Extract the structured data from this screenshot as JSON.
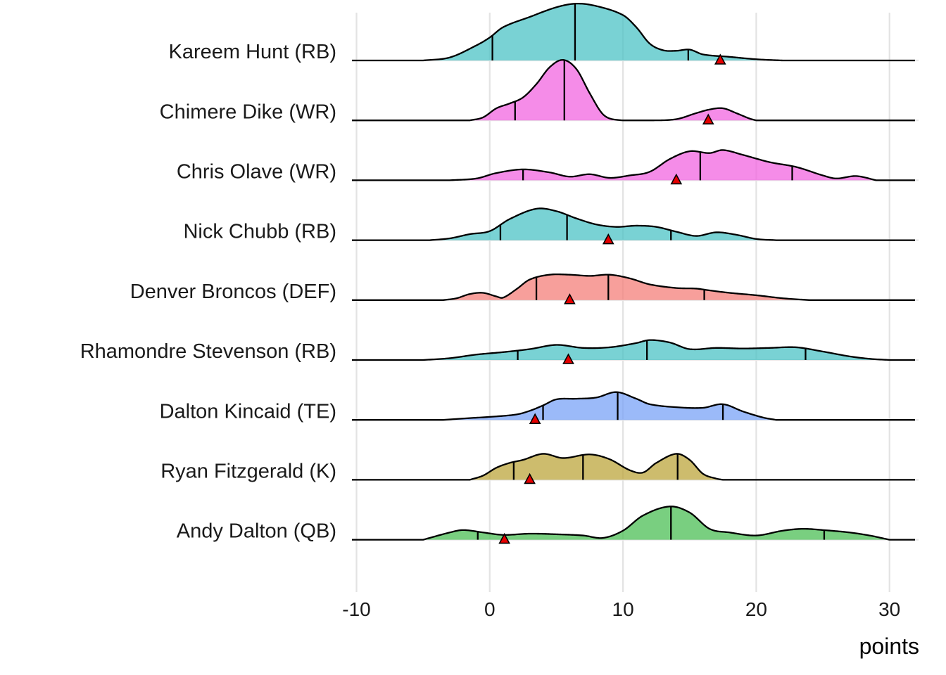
{
  "chart_data": {
    "type": "ridgeline",
    "xlabel": "points",
    "xlim": [
      -10,
      32
    ],
    "xticks": [
      -10,
      0,
      10,
      20,
      30
    ],
    "grid": true,
    "legend": "none",
    "colors": {
      "RB": "#4cc3c6",
      "WR": "#f266e0",
      "DEF": "#f47f7a",
      "TE": "#7aa3f7",
      "K": "#bca63c",
      "QB": "#4cbf55"
    },
    "rows": [
      {
        "label": "Kareem Hunt (RB)",
        "position": "RB",
        "range": [
          -5,
          22
        ],
        "density": [
          [
            -5,
            0.0
          ],
          [
            -3,
            0.05
          ],
          [
            -1,
            0.25
          ],
          [
            0,
            0.38
          ],
          [
            1,
            0.55
          ],
          [
            3,
            0.72
          ],
          [
            5,
            0.88
          ],
          [
            6.5,
            0.94
          ],
          [
            8,
            0.9
          ],
          [
            10,
            0.75
          ],
          [
            11,
            0.55
          ],
          [
            12,
            0.28
          ],
          [
            13,
            0.17
          ],
          [
            14,
            0.16
          ],
          [
            15,
            0.18
          ],
          [
            16,
            0.1
          ],
          [
            18,
            0.06
          ],
          [
            20,
            0.02
          ],
          [
            22,
            0.0
          ]
        ],
        "quantiles": [
          0.2,
          6.4,
          14.9
        ],
        "projection": 17.3
      },
      {
        "label": "Chimere Dike (WR)",
        "position": "WR",
        "range": [
          -1.5,
          20
        ],
        "density": [
          [
            -1.5,
            0.0
          ],
          [
            -0.5,
            0.05
          ],
          [
            0.5,
            0.2
          ],
          [
            1.5,
            0.28
          ],
          [
            2.5,
            0.38
          ],
          [
            3.5,
            0.6
          ],
          [
            4.5,
            0.88
          ],
          [
            5.5,
            1.0
          ],
          [
            6.5,
            0.85
          ],
          [
            7.5,
            0.45
          ],
          [
            8.5,
            0.1
          ],
          [
            9.5,
            0.01
          ],
          [
            12,
            0.0
          ],
          [
            14,
            0.02
          ],
          [
            15.5,
            0.12
          ],
          [
            16.5,
            0.18
          ],
          [
            17.5,
            0.2
          ],
          [
            18.5,
            0.12
          ],
          [
            19.5,
            0.03
          ],
          [
            20,
            0.0
          ]
        ],
        "quantiles": [
          1.9,
          5.6
        ],
        "projection": 16.4
      },
      {
        "label": "Chris Olave (WR)",
        "position": "WR",
        "range": [
          -3,
          29
        ],
        "density": [
          [
            -3,
            0.0
          ],
          [
            -1,
            0.03
          ],
          [
            0.5,
            0.12
          ],
          [
            2.5,
            0.18
          ],
          [
            4.5,
            0.13
          ],
          [
            6,
            0.06
          ],
          [
            7.5,
            0.1
          ],
          [
            9,
            0.04
          ],
          [
            10.5,
            0.08
          ],
          [
            12,
            0.14
          ],
          [
            13.5,
            0.35
          ],
          [
            15,
            0.48
          ],
          [
            16.5,
            0.45
          ],
          [
            17.5,
            0.5
          ],
          [
            19,
            0.42
          ],
          [
            21,
            0.3
          ],
          [
            23,
            0.22
          ],
          [
            25,
            0.08
          ],
          [
            26,
            0.03
          ],
          [
            27.5,
            0.07
          ],
          [
            29,
            0.0
          ]
        ],
        "quantiles": [
          2.5,
          15.8,
          22.7
        ],
        "projection": 14.0
      },
      {
        "label": "Nick Chubb (RB)",
        "position": "RB",
        "range": [
          -4.5,
          21.5
        ],
        "density": [
          [
            -4.5,
            0.0
          ],
          [
            -3,
            0.03
          ],
          [
            -1.5,
            0.1
          ],
          [
            0,
            0.15
          ],
          [
            1.5,
            0.35
          ],
          [
            3.5,
            0.52
          ],
          [
            5,
            0.48
          ],
          [
            6.5,
            0.36
          ],
          [
            8,
            0.26
          ],
          [
            9.5,
            0.22
          ],
          [
            11,
            0.24
          ],
          [
            12.5,
            0.22
          ],
          [
            14,
            0.14
          ],
          [
            15.5,
            0.07
          ],
          [
            17,
            0.13
          ],
          [
            18.5,
            0.09
          ],
          [
            20,
            0.02
          ],
          [
            21.5,
            0.0
          ]
        ],
        "quantiles": [
          0.8,
          5.8,
          13.6
        ],
        "projection": 8.9
      },
      {
        "label": "Denver Broncos (DEF)",
        "position": "DEF",
        "range": [
          -3.5,
          24
        ],
        "density": [
          [
            -3.5,
            0.0
          ],
          [
            -2.5,
            0.03
          ],
          [
            -1.5,
            0.1
          ],
          [
            -0.5,
            0.12
          ],
          [
            0.5,
            0.06
          ],
          [
            1,
            0.04
          ],
          [
            2,
            0.18
          ],
          [
            3,
            0.34
          ],
          [
            4.5,
            0.42
          ],
          [
            6,
            0.42
          ],
          [
            7.5,
            0.4
          ],
          [
            9,
            0.42
          ],
          [
            10.5,
            0.36
          ],
          [
            12,
            0.26
          ],
          [
            14,
            0.2
          ],
          [
            15.5,
            0.19
          ],
          [
            16.5,
            0.16
          ],
          [
            18,
            0.12
          ],
          [
            20,
            0.08
          ],
          [
            22,
            0.03
          ],
          [
            24,
            0.0
          ]
        ],
        "quantiles": [
          3.5,
          8.9,
          16.1
        ],
        "projection": 6.0
      },
      {
        "label": "Rhamondre Stevenson (RB)",
        "position": "RB",
        "range": [
          -5,
          30
        ],
        "density": [
          [
            -5,
            0.0
          ],
          [
            -3,
            0.03
          ],
          [
            -1,
            0.09
          ],
          [
            1,
            0.13
          ],
          [
            3,
            0.18
          ],
          [
            5,
            0.25
          ],
          [
            7,
            0.2
          ],
          [
            9,
            0.21
          ],
          [
            11,
            0.28
          ],
          [
            12,
            0.33
          ],
          [
            13.5,
            0.29
          ],
          [
            15,
            0.18
          ],
          [
            17,
            0.2
          ],
          [
            19,
            0.19
          ],
          [
            21,
            0.2
          ],
          [
            23,
            0.21
          ],
          [
            25,
            0.14
          ],
          [
            27,
            0.06
          ],
          [
            28.5,
            0.02
          ],
          [
            30,
            0.0
          ]
        ],
        "quantiles": [
          2.1,
          11.8,
          23.7
        ],
        "projection": 5.9
      },
      {
        "label": "Dalton Kincaid (TE)",
        "position": "TE",
        "range": [
          -3.5,
          21.5
        ],
        "density": [
          [
            -3.5,
            0.0
          ],
          [
            -1.5,
            0.03
          ],
          [
            0,
            0.05
          ],
          [
            2,
            0.09
          ],
          [
            3,
            0.15
          ],
          [
            4,
            0.24
          ],
          [
            5,
            0.34
          ],
          [
            6.5,
            0.35
          ],
          [
            8,
            0.37
          ],
          [
            9.5,
            0.46
          ],
          [
            11,
            0.35
          ],
          [
            12,
            0.26
          ],
          [
            14,
            0.21
          ],
          [
            16,
            0.2
          ],
          [
            17.5,
            0.26
          ],
          [
            19,
            0.14
          ],
          [
            20.5,
            0.04
          ],
          [
            21.5,
            0.0
          ]
        ],
        "quantiles": [
          4.0,
          9.6,
          17.5
        ],
        "projection": 3.4
      },
      {
        "label": "Ryan Fitzgerald (K)",
        "position": "K",
        "range": [
          -1.5,
          17.5
        ],
        "density": [
          [
            -1.5,
            0.0
          ],
          [
            -0.5,
            0.07
          ],
          [
            0.5,
            0.2
          ],
          [
            1.5,
            0.28
          ],
          [
            2.5,
            0.33
          ],
          [
            4,
            0.43
          ],
          [
            5.5,
            0.36
          ],
          [
            7.5,
            0.42
          ],
          [
            9,
            0.34
          ],
          [
            10.5,
            0.16
          ],
          [
            11.5,
            0.12
          ],
          [
            12.5,
            0.28
          ],
          [
            14,
            0.43
          ],
          [
            15,
            0.33
          ],
          [
            16,
            0.1
          ],
          [
            17,
            0.02
          ],
          [
            17.5,
            0.0
          ]
        ],
        "quantiles": [
          1.8,
          7.0,
          14.1
        ],
        "projection": 3.0
      },
      {
        "label": "Andy Dalton (QB)",
        "position": "QB",
        "range": [
          -5,
          30
        ],
        "density": [
          [
            -5,
            0.0
          ],
          [
            -3,
            0.12
          ],
          [
            -2,
            0.16
          ],
          [
            -0.5,
            0.12
          ],
          [
            1,
            0.08
          ],
          [
            3,
            0.1
          ],
          [
            5,
            0.09
          ],
          [
            7,
            0.07
          ],
          [
            8.5,
            0.03
          ],
          [
            10,
            0.15
          ],
          [
            11.5,
            0.4
          ],
          [
            13.5,
            0.55
          ],
          [
            15,
            0.45
          ],
          [
            16.5,
            0.18
          ],
          [
            18,
            0.12
          ],
          [
            20,
            0.07
          ],
          [
            22,
            0.15
          ],
          [
            23.5,
            0.18
          ],
          [
            25,
            0.16
          ],
          [
            27,
            0.12
          ],
          [
            28.5,
            0.07
          ],
          [
            30,
            0.0
          ]
        ],
        "quantiles": [
          -0.9,
          13.6,
          25.1
        ],
        "projection": 1.1
      }
    ]
  }
}
